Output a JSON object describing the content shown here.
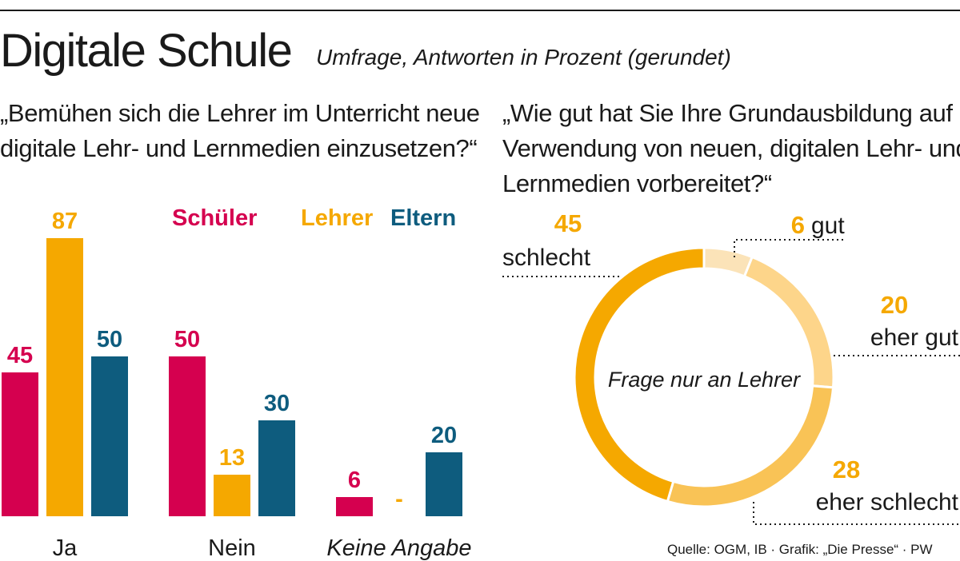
{
  "title": "Digitale Schule",
  "subtitle": "Umfrage, Antworten in Prozent (gerundet)",
  "source": "Quelle: OGM, IB · Grafik: „Die Presse“ · PW",
  "colors": {
    "schueler": "#d5004f",
    "lehrer": "#f5a800",
    "eltern": "#0e5c7e"
  },
  "chart_data": [
    {
      "type": "bar",
      "title": "„Bemühen sich die Lehrer im Unterricht neue digitale Lehr- und Lernmedien einzusetzen?“",
      "title_lines": [
        "„Bemühen sich die Lehrer im Unterricht neue",
        "digitale Lehr- und Lernmedien einzusetzen?“"
      ],
      "categories": [
        "Ja",
        "Nein",
        "Keine Angabe"
      ],
      "series": [
        {
          "name": "Schüler",
          "color": "#d5004f",
          "values": [
            45,
            50,
            6
          ],
          "labels": [
            "45",
            "50",
            "6"
          ]
        },
        {
          "name": "Lehrer",
          "color": "#f5a800",
          "values": [
            87,
            13,
            0
          ],
          "labels": [
            "87",
            "13",
            "-"
          ]
        },
        {
          "name": "Eltern",
          "color": "#0e5c7e",
          "values": [
            50,
            30,
            20
          ],
          "labels": [
            "50",
            "30",
            "20"
          ]
        }
      ],
      "legend": "top-right",
      "ylim": [
        0,
        87
      ]
    },
    {
      "type": "pie",
      "title": "„Wie gut hat Sie Ihre Grundausbildung auf die Verwendung von neuen, digitalen Lehr- und Lernmedien vorbereitet?“",
      "title_lines": [
        "„Wie gut hat Sie Ihre Grundausbildung auf die",
        "Verwendung von neuen, digitalen Lehr- und",
        "Lernmedien vorbereitet?“"
      ],
      "center_label": "Frage nur an Lehrer",
      "slices": [
        {
          "label": "gut",
          "value": 6,
          "color": "#fbe3b8"
        },
        {
          "label": "eher gut",
          "value": 20,
          "color": "#fdd58a"
        },
        {
          "label": "eher schlecht",
          "value": 28,
          "color": "#f9c356"
        },
        {
          "label": "schlecht",
          "value": 45,
          "color": "#f5a800"
        }
      ]
    }
  ]
}
